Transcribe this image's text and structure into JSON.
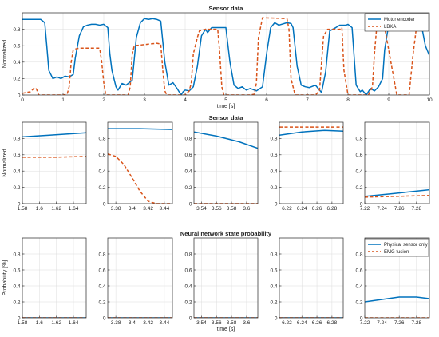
{
  "colors": {
    "motor": "#0072BD",
    "lbka": "#D95319",
    "axis": "#262626",
    "grid": "#dcdcdc"
  },
  "chart_data": [
    {
      "type": "line",
      "title": "Sensor data",
      "xlabel": "time [s]",
      "ylabel": "Normalized",
      "xlim": [
        0,
        10
      ],
      "ylim": [
        0,
        1
      ],
      "xticks": [
        0,
        1,
        2,
        3,
        4,
        5,
        6,
        7,
        8,
        9,
        10
      ],
      "yticks": [
        0,
        0.2,
        0.4,
        0.6,
        0.8
      ],
      "grid": true,
      "legend_position": "top-right",
      "series": [
        {
          "name": "Motor encoder",
          "style": "solid",
          "x": [
            0,
            0.45,
            0.55,
            0.6,
            0.65,
            0.75,
            0.85,
            0.95,
            1.05,
            1.15,
            1.25,
            1.3,
            1.4,
            1.5,
            1.6,
            1.7,
            1.8,
            1.9,
            2.0,
            2.1,
            2.15,
            2.2,
            2.3,
            2.35,
            2.45,
            2.55,
            2.7,
            2.8,
            2.9,
            3.0,
            3.1,
            3.2,
            3.3,
            3.4,
            3.5,
            3.6,
            3.7,
            3.8,
            3.9,
            3.95,
            4.0,
            4.1,
            4.2,
            4.3,
            4.4,
            4.5,
            4.55,
            4.65,
            4.8,
            5.0,
            5.1,
            5.2,
            5.3,
            5.4,
            5.5,
            5.6,
            5.75,
            5.9,
            6.0,
            6.1,
            6.2,
            6.3,
            6.5,
            6.6,
            6.65,
            6.75,
            6.85,
            6.95,
            7.05,
            7.2,
            7.35,
            7.45,
            7.55,
            7.7,
            7.8,
            7.95,
            8.0,
            8.1,
            8.2,
            8.3,
            8.35,
            8.45,
            8.55,
            8.65,
            8.75,
            8.85,
            8.9,
            9.0,
            9.1,
            9.2,
            9.3,
            9.4,
            9.5,
            9.6,
            9.7,
            9.8,
            9.9,
            10.0
          ],
          "y": [
            0.92,
            0.92,
            0.88,
            0.6,
            0.3,
            0.2,
            0.22,
            0.2,
            0.23,
            0.22,
            0.25,
            0.45,
            0.72,
            0.83,
            0.85,
            0.86,
            0.86,
            0.85,
            0.86,
            0.82,
            0.5,
            0.3,
            0.1,
            0.06,
            0.14,
            0.12,
            0.18,
            0.7,
            0.88,
            0.93,
            0.92,
            0.93,
            0.92,
            0.9,
            0.4,
            0.12,
            0.15,
            0.08,
            0.0,
            0.04,
            0.06,
            0.05,
            0.1,
            0.35,
            0.72,
            0.8,
            0.76,
            0.82,
            0.82,
            0.82,
            0.4,
            0.12,
            0.08,
            0.1,
            0.06,
            0.08,
            0.05,
            0.1,
            0.5,
            0.82,
            0.88,
            0.85,
            0.88,
            0.87,
            0.82,
            0.35,
            0.12,
            0.1,
            0.09,
            0.12,
            0.03,
            0.28,
            0.78,
            0.82,
            0.85,
            0.85,
            0.86,
            0.82,
            0.12,
            0.04,
            0.06,
            0.0,
            0.08,
            0.05,
            0.1,
            0.2,
            0.55,
            0.86,
            0.9,
            0.88,
            0.85,
            0.88,
            0.89,
            0.88,
            0.88,
            0.86,
            0.6,
            0.48
          ]
        },
        {
          "name": "LBKA",
          "style": "dashed",
          "x": [
            0,
            0.2,
            0.3,
            0.35,
            0.4,
            1.0,
            1.1,
            1.15,
            1.2,
            1.25,
            1.3,
            1.4,
            1.9,
            1.95,
            2.0,
            2.05,
            2.6,
            2.65,
            2.7,
            2.75,
            3.3,
            3.4,
            3.45,
            3.5,
            3.55,
            4.0,
            4.1,
            4.15,
            4.2,
            4.3,
            4.35,
            4.5,
            4.8,
            4.85,
            4.9,
            4.95,
            5.0,
            5.6,
            5.7,
            5.75,
            5.8,
            5.9,
            6.5,
            6.55,
            6.6,
            6.7,
            7.2,
            7.3,
            7.35,
            7.4,
            7.5,
            7.8,
            7.85,
            7.9,
            8.0,
            8.5,
            8.6,
            8.65,
            8.7,
            8.8,
            8.9,
            9.2,
            9.3,
            9.5,
            9.6,
            9.7,
            9.8,
            10.0
          ],
          "y": [
            0.02,
            0.04,
            0.09,
            0.07,
            0.0,
            0.0,
            0.01,
            0.1,
            0.4,
            0.55,
            0.56,
            0.57,
            0.57,
            0.4,
            0.15,
            0.0,
            0.0,
            0.1,
            0.5,
            0.6,
            0.63,
            0.62,
            0.3,
            0.05,
            0.0,
            0.0,
            0.05,
            0.15,
            0.5,
            0.7,
            0.78,
            0.8,
            0.8,
            0.5,
            0.1,
            0.0,
            0.0,
            0.0,
            0.01,
            0.15,
            0.7,
            0.94,
            0.93,
            0.8,
            0.2,
            0.0,
            0.0,
            0.05,
            0.4,
            0.72,
            0.8,
            0.8,
            0.82,
            0.3,
            0.0,
            0.0,
            0.1,
            0.5,
            0.8,
            0.82,
            0.82,
            0.0,
            0.0,
            0.0,
            0.5,
            0.9,
            0.93,
            0.92
          ]
        }
      ]
    },
    {
      "type": "line",
      "title": "",
      "xlabel": "",
      "ylabel": "Normalized",
      "xlim": [
        1.58,
        1.655
      ],
      "ylim": [
        0,
        1
      ],
      "xticks": [
        1.58,
        1.6,
        1.62,
        1.64
      ],
      "xtick_labels": [
        "1.58",
        "1.6",
        "1.62",
        "1.64"
      ],
      "yticks": [
        0,
        0.2,
        0.4,
        0.6,
        0.8
      ],
      "grid": true,
      "series": [
        {
          "name": "Motor encoder",
          "style": "solid",
          "x": [
            1.58,
            1.61,
            1.655
          ],
          "y": [
            0.82,
            0.84,
            0.87
          ]
        },
        {
          "name": "LBKA",
          "style": "dashed",
          "x": [
            1.58,
            1.62,
            1.655
          ],
          "y": [
            0.57,
            0.57,
            0.58
          ]
        }
      ]
    },
    {
      "type": "line",
      "title": "",
      "xlabel": "",
      "ylabel": "",
      "xlim": [
        3.37,
        3.45
      ],
      "ylim": [
        0,
        1
      ],
      "xticks": [
        3.38,
        3.4,
        3.42,
        3.44
      ],
      "xtick_labels": [
        "3.38",
        "3.4",
        "3.42",
        "3.44"
      ],
      "yticks": [
        0,
        0.2,
        0.4,
        0.6,
        0.8
      ],
      "grid": true,
      "series": [
        {
          "name": "Motor encoder",
          "style": "solid",
          "x": [
            3.37,
            3.41,
            3.45
          ],
          "y": [
            0.92,
            0.92,
            0.91
          ]
        },
        {
          "name": "LBKA",
          "style": "dashed",
          "x": [
            3.37,
            3.38,
            3.39,
            3.4,
            3.41,
            3.42,
            3.43,
            3.45
          ],
          "y": [
            0.61,
            0.58,
            0.48,
            0.32,
            0.15,
            0.03,
            0.0,
            0.0
          ]
        }
      ]
    },
    {
      "type": "line",
      "title": "Sensor data",
      "xlabel": "",
      "ylabel": "",
      "xlim": [
        3.53,
        3.615
      ],
      "ylim": [
        0,
        1
      ],
      "xticks": [
        3.54,
        3.56,
        3.58,
        3.6
      ],
      "xtick_labels": [
        "3.54",
        "3.56",
        "3.58",
        "3.6"
      ],
      "yticks": [
        0,
        0.2,
        0.4,
        0.6,
        0.8
      ],
      "grid": true,
      "series": [
        {
          "name": "Motor encoder",
          "style": "solid",
          "x": [
            3.53,
            3.56,
            3.59,
            3.615
          ],
          "y": [
            0.88,
            0.83,
            0.76,
            0.68
          ]
        },
        {
          "name": "LBKA",
          "style": "dashed",
          "x": [
            3.53,
            3.615
          ],
          "y": [
            0.0,
            0.0
          ]
        }
      ]
    },
    {
      "type": "line",
      "title": "",
      "xlabel": "",
      "ylabel": "",
      "xlim": [
        6.21,
        6.295
      ],
      "ylim": [
        0,
        1
      ],
      "xticks": [
        6.22,
        6.24,
        6.26,
        6.28
      ],
      "xtick_labels": [
        "6.22",
        "6.24",
        "6.26",
        "6.28"
      ],
      "yticks": [
        0,
        0.2,
        0.4,
        0.6,
        0.8
      ],
      "grid": true,
      "series": [
        {
          "name": "Motor encoder",
          "style": "solid",
          "x": [
            6.21,
            6.24,
            6.27,
            6.295
          ],
          "y": [
            0.84,
            0.88,
            0.9,
            0.89
          ]
        },
        {
          "name": "LBKA",
          "style": "dashed",
          "x": [
            6.21,
            6.295
          ],
          "y": [
            0.94,
            0.94
          ]
        }
      ]
    },
    {
      "type": "line",
      "title": "",
      "xlabel": "",
      "ylabel": "",
      "xlim": [
        7.22,
        7.295
      ],
      "ylim": [
        0,
        1
      ],
      "xticks": [
        7.22,
        7.24,
        7.26,
        7.28
      ],
      "xtick_labels": [
        "7.22",
        "7.24",
        "7.26",
        "7.28"
      ],
      "yticks": [
        0,
        0.2,
        0.4,
        0.6,
        0.8
      ],
      "grid": true,
      "series": [
        {
          "name": "Motor encoder",
          "style": "solid",
          "x": [
            7.22,
            7.25,
            7.295
          ],
          "y": [
            0.09,
            0.12,
            0.17
          ]
        },
        {
          "name": "LBKA",
          "style": "dashed",
          "x": [
            7.22,
            7.295
          ],
          "y": [
            0.08,
            0.1
          ]
        }
      ]
    },
    {
      "type": "line",
      "title": "",
      "xlabel": "",
      "ylabel": "Probability [%]",
      "xlim": [
        1.58,
        1.655
      ],
      "ylim": [
        0,
        1
      ],
      "xticks": [
        1.58,
        1.6,
        1.62,
        1.64
      ],
      "xtick_labels": [
        "1.58",
        "1.6",
        "1.62",
        "1.64"
      ],
      "yticks": [
        0,
        0.2,
        0.4,
        0.6,
        0.8
      ],
      "grid": true,
      "series": [
        {
          "name": "Physical sensor only",
          "style": "solid",
          "x": [
            1.58,
            1.655
          ],
          "y": [
            0,
            0
          ]
        },
        {
          "name": "EMG fusion",
          "style": "dashed",
          "x": [
            1.58,
            1.655
          ],
          "y": [
            0,
            0
          ]
        }
      ]
    },
    {
      "type": "line",
      "title": "",
      "xlabel": "",
      "ylabel": "",
      "xlim": [
        3.37,
        3.45
      ],
      "ylim": [
        0,
        1
      ],
      "xticks": [
        3.38,
        3.4,
        3.42,
        3.44
      ],
      "xtick_labels": [
        "3.38",
        "3.4",
        "3.42",
        "3.44"
      ],
      "yticks": [
        0,
        0.2,
        0.4,
        0.6,
        0.8
      ],
      "grid": true,
      "series": [
        {
          "name": "Physical sensor only",
          "style": "solid",
          "x": [
            3.37,
            3.45
          ],
          "y": [
            0,
            0
          ]
        },
        {
          "name": "EMG fusion",
          "style": "dashed",
          "x": [
            3.37,
            3.45
          ],
          "y": [
            0,
            0
          ]
        }
      ]
    },
    {
      "type": "line",
      "title": "Neural network state probability",
      "xlabel": "time [s]",
      "ylabel": "",
      "xlim": [
        3.53,
        3.615
      ],
      "ylim": [
        0,
        1
      ],
      "xticks": [
        3.54,
        3.56,
        3.58,
        3.6
      ],
      "xtick_labels": [
        "3.54",
        "3.56",
        "3.58",
        "3.6"
      ],
      "yticks": [
        0,
        0.2,
        0.4,
        0.6,
        0.8
      ],
      "grid": true,
      "series": [
        {
          "name": "Physical sensor only",
          "style": "solid",
          "x": [
            3.53,
            3.615
          ],
          "y": [
            0,
            0
          ]
        },
        {
          "name": "EMG fusion",
          "style": "dashed",
          "x": [
            3.53,
            3.615
          ],
          "y": [
            0,
            0
          ]
        }
      ]
    },
    {
      "type": "line",
      "title": "",
      "xlabel": "",
      "ylabel": "",
      "xlim": [
        6.21,
        6.295
      ],
      "ylim": [
        0,
        1
      ],
      "xticks": [
        6.22,
        6.24,
        6.26,
        6.28
      ],
      "xtick_labels": [
        "6.22",
        "6.24",
        "6.26",
        "6.28"
      ],
      "yticks": [
        0,
        0.2,
        0.4,
        0.6,
        0.8
      ],
      "grid": true,
      "series": [
        {
          "name": "Physical sensor only",
          "style": "solid",
          "x": [
            6.21,
            6.295
          ],
          "y": [
            0,
            0
          ]
        },
        {
          "name": "EMG fusion",
          "style": "dashed",
          "x": [
            6.21,
            6.295
          ],
          "y": [
            0,
            0
          ]
        }
      ]
    },
    {
      "type": "line",
      "title": "",
      "xlabel": "",
      "ylabel": "",
      "xlim": [
        7.22,
        7.295
      ],
      "ylim": [
        0,
        1
      ],
      "xticks": [
        7.22,
        7.24,
        7.26,
        7.28
      ],
      "xtick_labels": [
        "7.22",
        "7.24",
        "7.26",
        "7.28"
      ],
      "yticks": [
        0,
        0.2,
        0.4,
        0.6,
        0.8
      ],
      "grid": true,
      "legend_position": "top-right",
      "series": [
        {
          "name": "Physical sensor only",
          "style": "solid",
          "x": [
            7.22,
            7.24,
            7.26,
            7.28,
            7.295
          ],
          "y": [
            0.2,
            0.23,
            0.26,
            0.26,
            0.24
          ]
        },
        {
          "name": "EMG fusion",
          "style": "dashed",
          "x": [
            7.22,
            7.295
          ],
          "y": [
            0,
            0
          ]
        }
      ]
    }
  ]
}
